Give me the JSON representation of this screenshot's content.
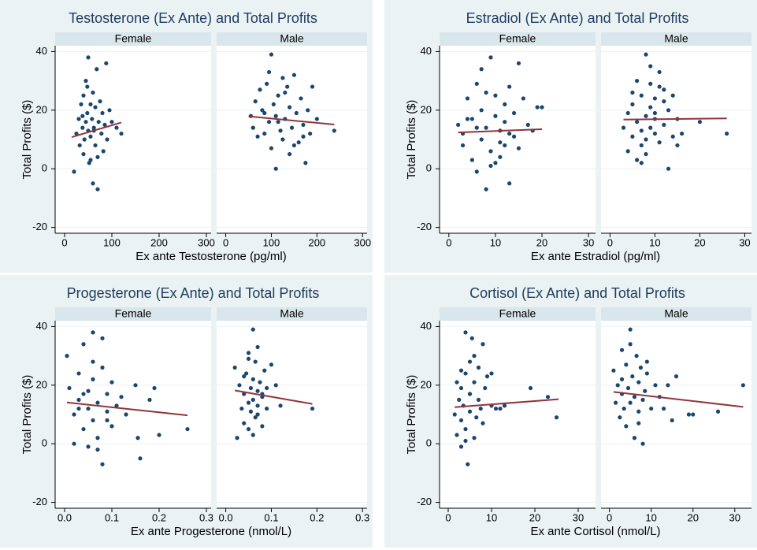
{
  "chart_data": [
    {
      "type": "scatter",
      "title": "Testosterone (Ex Ante) and Total Profits",
      "xlabel": "Ex ante Testosterone (pg/ml)",
      "ylabel": "Total Profits ($)",
      "xlim": [
        -20,
        310
      ],
      "xticks": [
        0,
        100,
        200,
        300
      ],
      "ylim": [
        -22,
        42
      ],
      "yticks": [
        -20,
        0,
        20,
        40
      ],
      "grid": true,
      "facets": [
        {
          "name": "Female",
          "color": "#1a476f",
          "x": [
            20,
            25,
            30,
            32,
            35,
            38,
            40,
            40,
            42,
            45,
            45,
            48,
            50,
            50,
            52,
            55,
            55,
            58,
            60,
            60,
            62,
            65,
            65,
            68,
            70,
            70,
            72,
            75,
            78,
            80,
            82,
            85,
            88,
            90,
            95,
            100,
            110,
            120,
            48,
            55,
            62,
            38
          ],
          "y": [
            -1,
            12,
            17,
            8,
            22,
            14,
            5,
            25,
            10,
            16,
            30,
            19,
            38,
            13,
            2,
            22,
            11,
            17,
            26,
            -5,
            14,
            21,
            8,
            34,
            4,
            -7,
            16,
            23,
            12,
            19,
            6,
            15,
            36,
            10,
            20,
            16,
            14,
            12,
            28,
            3,
            13,
            18
          ],
          "fit": {
            "color": "#90353b",
            "x": [
              15,
              120
            ],
            "y": [
              10.8,
              15.8
            ]
          }
        },
        {
          "name": "Male",
          "color": "#1a476f",
          "x": [
            55,
            60,
            65,
            70,
            75,
            80,
            85,
            90,
            95,
            100,
            100,
            105,
            110,
            110,
            115,
            120,
            125,
            125,
            130,
            135,
            140,
            140,
            145,
            150,
            155,
            160,
            165,
            170,
            175,
            180,
            185,
            190,
            200,
            238,
            95,
            130,
            150,
            115,
            85,
            170
          ],
          "y": [
            18,
            14,
            23,
            11,
            27,
            20,
            12,
            29,
            16,
            39,
            7,
            22,
            18,
            0,
            25,
            13,
            31,
            10,
            17,
            28,
            21,
            5,
            14,
            32,
            19,
            9,
            24,
            15,
            2,
            20,
            12,
            28,
            17,
            13,
            33,
            26,
            8,
            16,
            19,
            11
          ],
          "fit": {
            "color": "#90353b",
            "x": [
              50,
              238
            ],
            "y": [
              17.9,
              15.1
            ]
          }
        }
      ]
    },
    {
      "type": "scatter",
      "title": "Estradiol (Ex Ante) and Total Profits",
      "xlabel": "Ex ante Estradiol (pg/ml)",
      "ylabel": "Total Profits ($)",
      "xlim": [
        -2,
        31.5
      ],
      "xticks": [
        0,
        10,
        20,
        30
      ],
      "ylim": [
        -22,
        42
      ],
      "yticks": [
        -20,
        0,
        20,
        40
      ],
      "grid": true,
      "facets": [
        {
          "name": "Female",
          "color": "#1a476f",
          "x": [
            2,
            3,
            3,
            4,
            5,
            5,
            6,
            6,
            7,
            7,
            7,
            8,
            8,
            9,
            9,
            10,
            10,
            10,
            11,
            11,
            12,
            12,
            13,
            13,
            14,
            14,
            15,
            15,
            16,
            17,
            18,
            19,
            20,
            6,
            9,
            12,
            8,
            4,
            11,
            13
          ],
          "y": [
            15,
            12,
            8,
            24,
            3,
            17,
            29,
            -1,
            34,
            10,
            20,
            14,
            -7,
            38,
            6,
            18,
            25,
            2,
            13,
            9,
            22,
            16,
            -5,
            28,
            11,
            19,
            36,
            7,
            24,
            15,
            13,
            21,
            21,
            14,
            1,
            8,
            26,
            17,
            4,
            12
          ],
          "fit": {
            "color": "#90353b",
            "x": [
              2,
              20
            ],
            "y": [
              12.4,
              13.5
            ]
          }
        },
        {
          "name": "Male",
          "color": "#1a476f",
          "x": [
            3,
            4,
            4,
            5,
            5,
            6,
            6,
            7,
            7,
            7,
            8,
            8,
            8,
            9,
            9,
            9,
            10,
            10,
            10,
            11,
            11,
            12,
            12,
            13,
            13,
            14,
            14,
            15,
            15,
            16,
            20,
            26,
            6,
            8,
            10,
            12,
            9,
            7,
            11,
            5
          ],
          "y": [
            14,
            19,
            6,
            22,
            11,
            16,
            3,
            25,
            13,
            8,
            39,
            18,
            10,
            21,
            14,
            29,
            12,
            24,
            17,
            33,
            9,
            27,
            15,
            20,
            0,
            11,
            25,
            17,
            8,
            12,
            16,
            12,
            30,
            5,
            19,
            23,
            35,
            2,
            28,
            26
          ],
          "fit": {
            "color": "#90353b",
            "x": [
              3,
              26
            ],
            "y": [
              16.8,
              17.2
            ]
          }
        }
      ]
    },
    {
      "type": "scatter",
      "title": "Progesterone (Ex Ante) and Total Profits",
      "xlabel": "Ex ante Progesterone (nmol/L)",
      "ylabel": "Total Profits ($)",
      "xlim": [
        -0.02,
        0.31
      ],
      "xticks": [
        {
          "value": 0,
          "label": "0.0"
        },
        0.1,
        0.2,
        0.3
      ],
      "ylim": [
        -22,
        42
      ],
      "yticks": [
        -20,
        0,
        20,
        40
      ],
      "grid": true,
      "facets": [
        {
          "name": "Female",
          "color": "#1a476f",
          "x": [
            0.005,
            0.01,
            0.02,
            0.02,
            0.03,
            0.03,
            0.04,
            0.04,
            0.05,
            0.05,
            0.05,
            0.06,
            0.06,
            0.06,
            0.07,
            0.07,
            0.08,
            0.08,
            0.08,
            0.09,
            0.09,
            0.1,
            0.1,
            0.11,
            0.12,
            0.13,
            0.15,
            0.155,
            0.16,
            0.18,
            0.19,
            0.2,
            0.26,
            0.03,
            0.07,
            0.06,
            0.04,
            0.09
          ],
          "y": [
            30,
            19,
            10,
            0,
            24,
            15,
            5,
            34,
            18,
            12,
            -1,
            38,
            8,
            22,
            14,
            2,
            36,
            -7,
            26,
            11,
            17,
            21,
            6,
            13,
            16,
            10,
            20,
            2,
            -5,
            15,
            19,
            3,
            5,
            12,
            -2,
            28,
            17,
            8
          ],
          "fit": {
            "color": "#90353b",
            "x": [
              0.005,
              0.26
            ],
            "y": [
              14.1,
              9.7
            ]
          }
        },
        {
          "name": "Male",
          "color": "#1a476f",
          "x": [
            0.02,
            0.025,
            0.03,
            0.035,
            0.04,
            0.04,
            0.045,
            0.05,
            0.05,
            0.05,
            0.055,
            0.055,
            0.06,
            0.06,
            0.06,
            0.065,
            0.065,
            0.07,
            0.07,
            0.07,
            0.075,
            0.08,
            0.08,
            0.085,
            0.09,
            0.09,
            0.1,
            0.11,
            0.12,
            0.19,
            0.06,
            0.05,
            0.07,
            0.04,
            0.08
          ],
          "y": [
            26,
            2,
            20,
            12,
            17,
            7,
            24,
            14,
            31,
            5,
            19,
            11,
            39,
            22,
            15,
            28,
            9,
            18,
            13,
            33,
            21,
            16,
            6,
            25,
            12,
            19,
            27,
            20,
            13,
            12,
            3,
            29,
            10,
            23,
            17
          ],
          "fit": {
            "color": "#90353b",
            "x": [
              0.02,
              0.19
            ],
            "y": [
              18.2,
              13.6
            ]
          }
        }
      ]
    },
    {
      "type": "scatter",
      "title": "Cortisol (Ex Ante) and Total Profits",
      "xlabel": "Ex ante Cortisol (nmol/L)",
      "ylabel": "Total Profits ($)",
      "xlim": [
        -2,
        34
      ],
      "xticks": [
        0,
        10,
        20,
        30
      ],
      "ylim": [
        -22,
        42
      ],
      "yticks": [
        -20,
        0,
        20,
        40
      ],
      "grid": true,
      "facets": [
        {
          "name": "Female",
          "color": "#1a476f",
          "x": [
            1.5,
            2,
            2,
            2.5,
            3,
            3,
            3,
            3.5,
            4,
            4,
            4,
            4.5,
            5,
            5,
            5,
            5.5,
            6,
            6,
            6.5,
            7,
            7,
            7.5,
            8,
            8,
            8.5,
            9,
            10,
            10,
            11,
            12,
            13,
            19,
            23,
            25,
            4,
            6,
            3,
            5
          ],
          "y": [
            10,
            21,
            3,
            15,
            -1,
            19,
            8,
            13,
            38,
            5,
            24,
            -7,
            28,
            17,
            11,
            36,
            2,
            21,
            9,
            15,
            26,
            12,
            34,
            7,
            19,
            23,
            13,
            24,
            12,
            12,
            13,
            19,
            16,
            9,
            1,
            30,
            25,
            17
          ],
          "fit": {
            "color": "#90353b",
            "x": [
              1.5,
              25.5
            ],
            "y": [
              12.5,
              15.2
            ]
          }
        },
        {
          "name": "Male",
          "color": "#1a476f",
          "x": [
            1,
            1.5,
            2,
            2.5,
            3,
            3,
            3.5,
            4,
            4,
            4.5,
            5,
            5,
            5.5,
            6,
            6,
            6.5,
            7,
            7,
            7.5,
            8,
            8,
            8.5,
            9,
            10,
            11,
            12,
            13,
            14,
            15,
            16,
            19,
            20,
            26,
            32,
            5,
            3,
            7,
            9
          ],
          "y": [
            25,
            14,
            20,
            9,
            32,
            17,
            12,
            27,
            6,
            19,
            39,
            14,
            23,
            2,
            16,
            30,
            11,
            21,
            26,
            0,
            15,
            18,
            28,
            12,
            20,
            16,
            12,
            20,
            8,
            23,
            10,
            10,
            11,
            20,
            34,
            22,
            7,
            24
          ],
          "fit": {
            "color": "#90353b",
            "x": [
              1,
              32
            ],
            "y": [
              17.7,
              12.6
            ]
          }
        }
      ]
    }
  ]
}
